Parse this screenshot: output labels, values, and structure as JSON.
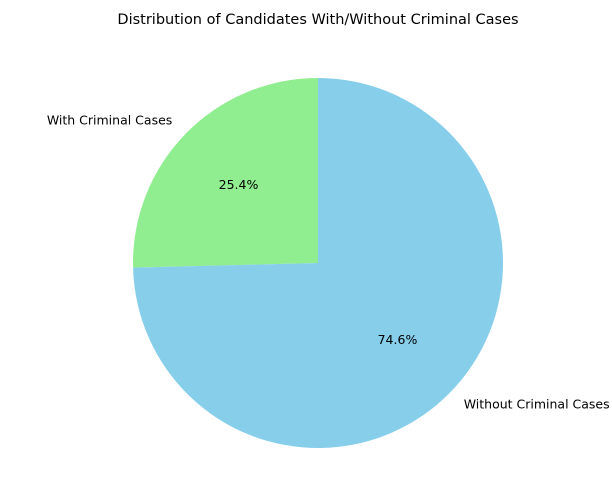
{
  "chart_data": {
    "type": "pie",
    "title": "Distribution of Candidates With/Without Criminal Cases",
    "slices": [
      {
        "label": "With Criminal Cases",
        "value": 25.4,
        "pct_label": "25.4%",
        "color": "#90ee90"
      },
      {
        "label": "Without Criminal Cases",
        "value": 74.6,
        "pct_label": "74.6%",
        "color": "#87ceeb"
      }
    ],
    "start_angle_deg": 90,
    "direction": "counterclockwise",
    "legend": "none"
  }
}
